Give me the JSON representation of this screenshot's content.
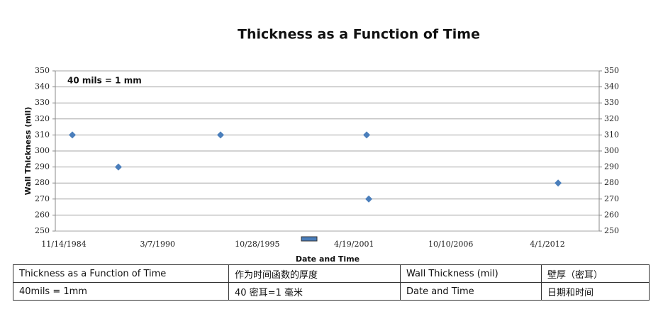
{
  "chart_data": {
    "type": "scatter",
    "title": "Thickness as a Function of Time",
    "annotation": "40 mils = 1 mm",
    "y_label": "Wall Thickness (mil)",
    "x_label": "Date and Time",
    "series": [
      {
        "name": "Wall Thickness",
        "color": "#4a7ebb",
        "x": [
          "5/9/1985",
          "12/17/1987",
          "9/28/1993",
          "1/5/2002",
          "2/18/2002",
          "11/7/2012"
        ],
        "values": [
          310,
          290,
          310,
          310,
          270,
          280
        ]
      }
    ],
    "xlim": [
      "11/14/1984",
      "3/6/2015"
    ],
    "xticks": [
      "11/14/1984",
      "3/7/1990",
      "10/28/1995",
      "4/19/2001",
      "10/10/2006",
      "4/1/2012"
    ],
    "ylim": [
      250,
      350
    ],
    "yticks": [
      250,
      260,
      270,
      280,
      290,
      300,
      310,
      320,
      330,
      340,
      350
    ],
    "y2lim": [
      250,
      350
    ],
    "y2ticks": [
      250,
      260,
      270,
      280,
      290,
      300,
      310,
      320,
      330,
      340,
      350
    ],
    "grid": true
  },
  "table": {
    "rows": [
      [
        "Thickness as a Function of Time",
        "作为时间函数的厚度",
        "Wall Thickness (mil)",
        "壁厚（密耳）"
      ],
      [
        "40mils = 1mm",
        "40 密耳=1 毫米",
        "Date and Time",
        "日期和时间"
      ]
    ]
  }
}
